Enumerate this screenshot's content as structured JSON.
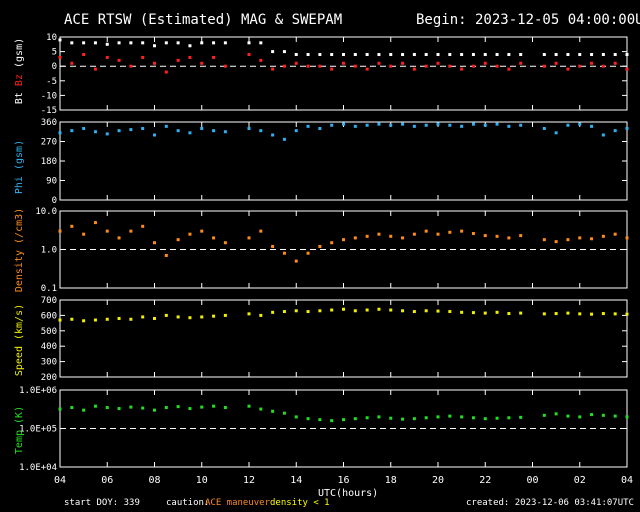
{
  "header": {
    "title": "ACE RTSW (Estimated) MAG & SWEPAM",
    "begin": "Begin: 2023-12-05 04:00:00UTC"
  },
  "footer": {
    "start_doy": "start DOY: 339",
    "caution_label": "caution:",
    "maneuver_label": "ACE maneuver",
    "density_note": "density < 1",
    "created": "created: 2023-12-06 03:41:07UTC"
  },
  "colors": {
    "background": "#000000",
    "axis": "#ffffff",
    "bt": "#ffffff",
    "bz": "#ff2020",
    "phi": "#30b0f0",
    "density": "#ff8c1a",
    "speed": "#f0f000",
    "temp": "#20e020",
    "maneuver": "#ff8c1a",
    "density_note": "#ffff00"
  },
  "chart_data": {
    "type": "scatter",
    "x_axis": {
      "label": "UTC(hours)",
      "ticks": [
        "04",
        "06",
        "08",
        "10",
        "12",
        "14",
        "16",
        "18",
        "20",
        "22",
        "00",
        "02",
        "04"
      ],
      "range_hours": [
        0,
        24
      ]
    },
    "panels": [
      {
        "id": "mag",
        "ylabel_parts": [
          "Bt",
          "Bz",
          "(gsm)"
        ],
        "ylim": [
          -15,
          10
        ],
        "scale": "linear",
        "yticks": [
          "10",
          "5",
          "0",
          "-5",
          "-10",
          "-15"
        ],
        "ytick_values": [
          10,
          5,
          0,
          -5,
          -10,
          -15
        ],
        "dashed_at": 0,
        "series": [
          {
            "name": "Bt",
            "color_key": "bt",
            "x": [
              0,
              0.5,
              1,
              1.5,
              2,
              2.5,
              3,
              3.5,
              4,
              4.5,
              5,
              5.5,
              6,
              6.5,
              7,
              7.5,
              8,
              8.5,
              9,
              9.5,
              10,
              10.5,
              11,
              11.5,
              12,
              12.5,
              13,
              13.5,
              14,
              14.5,
              15,
              15.5,
              16,
              16.5,
              17,
              17.5,
              18,
              18.5,
              19,
              19.5,
              20,
              20.5,
              21,
              21.5,
              22,
              22.5,
              23,
              23.5,
              24
            ],
            "y": [
              9,
              8,
              8,
              8,
              7.5,
              8,
              8,
              8,
              7,
              8,
              8,
              7,
              8,
              8,
              8,
              null,
              8,
              8,
              5,
              5,
              4,
              4,
              4,
              4,
              4,
              4,
              4,
              4,
              4,
              4,
              4,
              4,
              4,
              4,
              4,
              4,
              4,
              4,
              4,
              4,
              null,
              4,
              4,
              4,
              4,
              4,
              4,
              4,
              4
            ]
          },
          {
            "name": "Bz",
            "color_key": "bz",
            "x": [
              0,
              0.5,
              1,
              1.5,
              2,
              2.5,
              3,
              3.5,
              4,
              4.5,
              5,
              5.5,
              6,
              6.5,
              7,
              7.5,
              8,
              8.5,
              9,
              9.5,
              10,
              10.5,
              11,
              11.5,
              12,
              12.5,
              13,
              13.5,
              14,
              14.5,
              15,
              15.5,
              16,
              16.5,
              17,
              17.5,
              18,
              18.5,
              19,
              19.5,
              20,
              20.5,
              21,
              21.5,
              22,
              22.5,
              23,
              23.5,
              24
            ],
            "y": [
              3,
              1,
              4,
              -1,
              3,
              2,
              0,
              3,
              1,
              -2,
              2,
              3,
              1,
              3,
              0,
              null,
              4,
              2,
              -1,
              0,
              1,
              0,
              0,
              -1,
              1,
              0,
              -1,
              1,
              0,
              1,
              -1,
              0,
              1,
              0,
              -1,
              0,
              1,
              0,
              -1,
              1,
              null,
              0,
              1,
              -1,
              0,
              1,
              0,
              1,
              -1
            ]
          }
        ]
      },
      {
        "id": "phi",
        "ylabel_parts": [
          "Phi",
          "(gsm)"
        ],
        "ylim": [
          0,
          360
        ],
        "scale": "linear",
        "yticks": [
          "360",
          "270",
          "180",
          "90",
          "0"
        ],
        "ytick_values": [
          360,
          270,
          180,
          90,
          0
        ],
        "series": [
          {
            "name": "Phi",
            "color_key": "phi",
            "x": [
              0,
              0.5,
              1,
              1.5,
              2,
              2.5,
              3,
              3.5,
              4,
              4.5,
              5,
              5.5,
              6,
              6.5,
              7,
              7.5,
              8,
              8.5,
              9,
              9.5,
              10,
              10.5,
              11,
              11.5,
              12,
              12.5,
              13,
              13.5,
              14,
              14.5,
              15,
              15.5,
              16,
              16.5,
              17,
              17.5,
              18,
              18.5,
              19,
              19.5,
              20,
              20.5,
              21,
              21.5,
              22,
              22.5,
              23,
              23.5,
              24
            ],
            "y": [
              310,
              320,
              330,
              315,
              305,
              320,
              325,
              330,
              300,
              340,
              320,
              310,
              330,
              320,
              315,
              null,
              330,
              320,
              300,
              280,
              320,
              340,
              330,
              345,
              350,
              340,
              345,
              350,
              345,
              350,
              340,
              345,
              350,
              345,
              340,
              350,
              345,
              350,
              340,
              345,
              null,
              330,
              310,
              345,
              350,
              340,
              300,
              320,
              330
            ]
          }
        ]
      },
      {
        "id": "density",
        "ylabel_parts": [
          "Density",
          "(/cm3)"
        ],
        "ylim": [
          0.1,
          10
        ],
        "scale": "log",
        "yticks": [
          "10.0",
          "1.0",
          "0.1"
        ],
        "ytick_values": [
          10,
          1,
          0.1
        ],
        "dashed_at": 1,
        "series": [
          {
            "name": "Density",
            "color_key": "density",
            "x": [
              0,
              0.5,
              1,
              1.5,
              2,
              2.5,
              3,
              3.5,
              4,
              4.5,
              5,
              5.5,
              6,
              6.5,
              7,
              7.5,
              8,
              8.5,
              9,
              9.5,
              10,
              10.5,
              11,
              11.5,
              12,
              12.5,
              13,
              13.5,
              14,
              14.5,
              15,
              15.5,
              16,
              16.5,
              17,
              17.5,
              18,
              18.5,
              19,
              19.5,
              20,
              20.5,
              21,
              21.5,
              22,
              22.5,
              23,
              23.5,
              24
            ],
            "y": [
              3,
              4,
              2.5,
              5,
              3,
              2,
              3,
              4,
              1.5,
              0.7,
              1.8,
              2.5,
              3,
              2,
              1.5,
              null,
              2,
              3,
              1.2,
              0.8,
              0.5,
              0.8,
              1.2,
              1.5,
              1.8,
              2,
              2.2,
              2.5,
              2.2,
              2,
              2.5,
              3,
              2.5,
              2.8,
              3,
              2.6,
              2.3,
              2.2,
              2,
              2.3,
              null,
              1.8,
              1.6,
              1.8,
              2,
              1.9,
              2.2,
              2.5,
              2
            ]
          }
        ]
      },
      {
        "id": "speed",
        "ylabel_parts": [
          "Speed",
          "(km/s)"
        ],
        "ylim": [
          200,
          700
        ],
        "scale": "linear",
        "yticks": [
          "700",
          "600",
          "500",
          "400",
          "300",
          "200"
        ],
        "ytick_values": [
          700,
          600,
          500,
          400,
          300,
          200
        ],
        "series": [
          {
            "name": "Speed",
            "color_key": "speed",
            "x": [
              0,
              0.5,
              1,
              1.5,
              2,
              2.5,
              3,
              3.5,
              4,
              4.5,
              5,
              5.5,
              6,
              6.5,
              7,
              7.5,
              8,
              8.5,
              9,
              9.5,
              10,
              10.5,
              11,
              11.5,
              12,
              12.5,
              13,
              13.5,
              14,
              14.5,
              15,
              15.5,
              16,
              16.5,
              17,
              17.5,
              18,
              18.5,
              19,
              19.5,
              20,
              20.5,
              21,
              21.5,
              22,
              22.5,
              23,
              23.5,
              24
            ],
            "y": [
              570,
              575,
              565,
              570,
              575,
              580,
              575,
              590,
              580,
              600,
              590,
              585,
              590,
              595,
              600,
              null,
              610,
              600,
              620,
              625,
              630,
              625,
              630,
              635,
              640,
              630,
              635,
              640,
              635,
              630,
              625,
              630,
              628,
              625,
              620,
              618,
              615,
              620,
              612,
              615,
              null,
              610,
              612,
              615,
              610,
              608,
              612,
              610,
              608
            ]
          }
        ]
      },
      {
        "id": "temp",
        "ylabel_parts": [
          "Temp",
          "(K)"
        ],
        "ylim": [
          10000,
          1000000
        ],
        "scale": "log",
        "yticks": [
          "1.0E+06",
          "1.0E+05",
          "1.0E+04"
        ],
        "ytick_values": [
          1000000,
          100000,
          10000
        ],
        "dashed_at": 100000,
        "series": [
          {
            "name": "Temp",
            "color_key": "temp",
            "x": [
              0,
              0.5,
              1,
              1.5,
              2,
              2.5,
              3,
              3.5,
              4,
              4.5,
              5,
              5.5,
              6,
              6.5,
              7,
              7.5,
              8,
              8.5,
              9,
              9.5,
              10,
              10.5,
              11,
              11.5,
              12,
              12.5,
              13,
              13.5,
              14,
              14.5,
              15,
              15.5,
              16,
              16.5,
              17,
              17.5,
              18,
              18.5,
              19,
              19.5,
              20,
              20.5,
              21,
              21.5,
              22,
              22.5,
              23,
              23.5,
              24
            ],
            "y": [
              320000,
              350000,
              300000,
              380000,
              350000,
              330000,
              360000,
              340000,
              300000,
              350000,
              370000,
              330000,
              360000,
              380000,
              350000,
              null,
              380000,
              320000,
              280000,
              250000,
              200000,
              180000,
              170000,
              160000,
              170000,
              180000,
              190000,
              200000,
              185000,
              175000,
              180000,
              190000,
              200000,
              210000,
              200000,
              190000,
              180000,
              185000,
              190000,
              195000,
              null,
              220000,
              240000,
              210000,
              200000,
              230000,
              220000,
              210000,
              200000
            ]
          }
        ]
      }
    ]
  }
}
